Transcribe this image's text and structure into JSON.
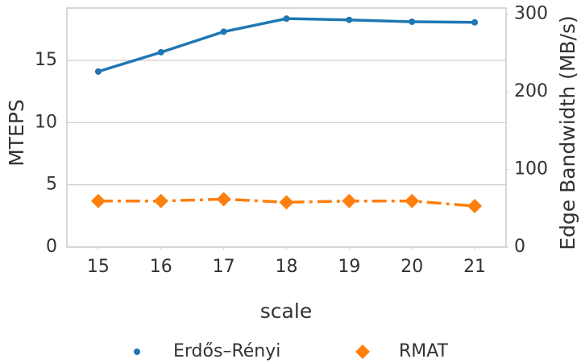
{
  "chart_data": {
    "type": "line",
    "xlabel": "scale",
    "ylabel": "MTEPS",
    "y2label": "Edge Bandwidth (MB/s)",
    "x": [
      15,
      16,
      17,
      18,
      19,
      20,
      21
    ],
    "series": [
      {
        "name": "Erdős–Rényi",
        "color": "#1f77b4",
        "marker": "circle",
        "linestyle": "solid",
        "values": [
          14.1,
          15.65,
          17.3,
          18.35,
          18.25,
          18.1,
          18.05
        ]
      },
      {
        "name": "RMAT",
        "color": "#ff7f0e",
        "marker": "diamond",
        "linestyle": "dashdot",
        "values": [
          3.7,
          3.7,
          3.85,
          3.6,
          3.7,
          3.7,
          3.3
        ]
      }
    ],
    "xlim": [
      14.5,
      21.5
    ],
    "xticks": [
      15,
      16,
      17,
      18,
      19,
      20,
      21
    ],
    "ylim": [
      0,
      19.2
    ],
    "yticks": [
      0,
      5,
      10,
      15
    ],
    "y2lim": [
      0,
      308
    ],
    "y2ticks": [
      0,
      100,
      200,
      300
    ],
    "grid": true,
    "legend": "bottom"
  }
}
